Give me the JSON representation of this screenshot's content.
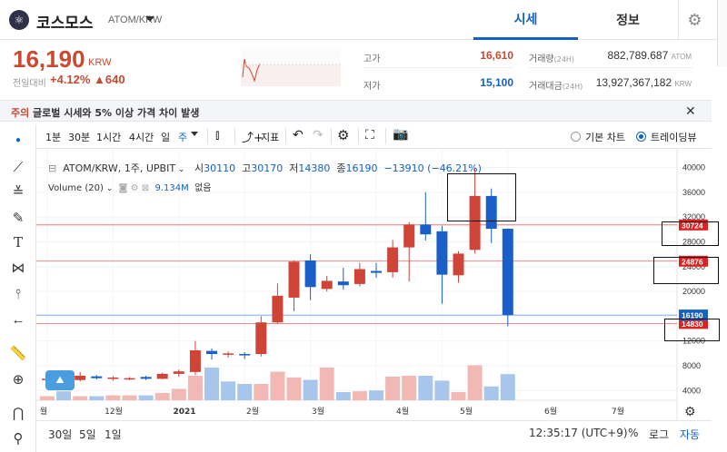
{
  "header": {
    "coin_name": "코스모스",
    "pair": "ATOM/KRW",
    "tabs": [
      "시세",
      "정보"
    ]
  },
  "price": {
    "current": "16,190",
    "unit": "KRW",
    "change_label": "전일대비",
    "change_pct": "+4.12%",
    "change_amt": "▲640",
    "high_label": "고가",
    "high": "16,610",
    "low_label": "저가",
    "low": "15,100",
    "vol_label": "거래량",
    "vol_period": "(24H)",
    "vol": "882,789.687",
    "vol_unit": "ATOM",
    "amt_label": "거래대금",
    "amt_period": "(24H)",
    "amt": "13,927,367,182",
    "amt_unit": "KRW"
  },
  "notice": {
    "tag": "주의",
    "text": "글로벌 시세와 5% 이상 가격 차이 발생"
  },
  "toolbar": {
    "intervals": [
      "1분",
      "30분",
      "1시간",
      "4시간",
      "일",
      "주"
    ],
    "indicator": "지표",
    "basic_chart": "기본 차트",
    "tradingview": "트레이딩뷰"
  },
  "legend": {
    "title": "ATOM/KRW, 1주, UPBIT",
    "open_label": "시",
    "open": "30110",
    "high_label": "고",
    "high": "30170",
    "low_label": "저",
    "low": "14380",
    "close_label": "종",
    "close": "16190",
    "change": "−13910 (−46.21%)",
    "volume_label": "Volume (20)",
    "volume_value": "9.134M",
    "volume_extra": "없음"
  },
  "chart_data": {
    "type": "candlestick",
    "y_ticks": [
      4000,
      8000,
      12000,
      16000,
      20000,
      24000,
      28000,
      32000,
      36000,
      40000
    ],
    "y_tick_labels": [
      "4000",
      "8000",
      "12000",
      "16000",
      "20000",
      "24000",
      "28000",
      "32000",
      "36000",
      "40000"
    ],
    "x_labels": [
      "월",
      "12월",
      "2021",
      "2월",
      "3월",
      "4월",
      "5월",
      "6월",
      "7월"
    ],
    "price_lines": [
      {
        "value": 30724,
        "label": "30724",
        "color": "#e02020"
      },
      {
        "value": 24876,
        "label": "24876",
        "color": "#e02020"
      },
      {
        "value": 14830,
        "label": "14830",
        "color": "#e02020"
      },
      {
        "value": 16190,
        "label": "16190",
        "color": "#1261c4"
      }
    ],
    "candles": [
      {
        "o": 5800,
        "h": 6100,
        "l": 5500,
        "c": 5900
      },
      {
        "o": 6000,
        "h": 6200,
        "l": 5600,
        "c": 5800
      },
      {
        "o": 5700,
        "h": 7000,
        "l": 5500,
        "c": 6400
      },
      {
        "o": 6300,
        "h": 6500,
        "l": 5800,
        "c": 6000
      },
      {
        "o": 5900,
        "h": 6300,
        "l": 5600,
        "c": 6100
      },
      {
        "o": 6000,
        "h": 6200,
        "l": 5700,
        "c": 6000
      },
      {
        "o": 6200,
        "h": 6400,
        "l": 5700,
        "c": 5900
      },
      {
        "o": 5900,
        "h": 6900,
        "l": 5800,
        "c": 6700
      },
      {
        "o": 6700,
        "h": 7400,
        "l": 6200,
        "c": 7100
      },
      {
        "o": 7000,
        "h": 12000,
        "l": 6500,
        "c": 10500
      },
      {
        "o": 10400,
        "h": 10800,
        "l": 9000,
        "c": 9900
      },
      {
        "o": 9900,
        "h": 10300,
        "l": 9300,
        "c": 10000
      },
      {
        "o": 9900,
        "h": 10200,
        "l": 9100,
        "c": 9700
      },
      {
        "o": 9900,
        "h": 16000,
        "l": 9500,
        "c": 15000
      },
      {
        "o": 15000,
        "h": 21300,
        "l": 14800,
        "c": 19300
      },
      {
        "o": 19000,
        "h": 25000,
        "l": 16800,
        "c": 24800
      },
      {
        "o": 25000,
        "h": 26000,
        "l": 18600,
        "c": 20700
      },
      {
        "o": 20400,
        "h": 22500,
        "l": 20000,
        "c": 21700
      },
      {
        "o": 21600,
        "h": 23800,
        "l": 20300,
        "c": 21000
      },
      {
        "o": 21200,
        "h": 24600,
        "l": 20800,
        "c": 23600
      },
      {
        "o": 23300,
        "h": 24600,
        "l": 22200,
        "c": 23000
      },
      {
        "o": 23100,
        "h": 28300,
        "l": 22200,
        "c": 27100
      },
      {
        "o": 27100,
        "h": 31200,
        "l": 21600,
        "c": 30800
      },
      {
        "o": 30800,
        "h": 36000,
        "l": 28200,
        "c": 29200
      },
      {
        "o": 29700,
        "h": 30600,
        "l": 18000,
        "c": 22700
      },
      {
        "o": 22600,
        "h": 26500,
        "l": 21400,
        "c": 26100
      },
      {
        "o": 26700,
        "h": 40000,
        "l": 26100,
        "c": 35400
      },
      {
        "o": 35400,
        "h": 36600,
        "l": 27800,
        "c": 30100
      },
      {
        "o": 30110,
        "h": 30170,
        "l": 14380,
        "c": 16190
      }
    ],
    "volume_max_label": "",
    "volumes": [
      0.5,
      1.1,
      0.5,
      0.5,
      0.6,
      0.6,
      0.6,
      0.9,
      1.4,
      3.0,
      4.0,
      2.3,
      2.0,
      2.0,
      3.5,
      2.8,
      2.5,
      4.0,
      1.0,
      1.1,
      1.2,
      2.9,
      3.0,
      3.0,
      2.4,
      1.0,
      4.3,
      1.7,
      3.2
    ],
    "volume_colors": [
      "up",
      "down",
      "up",
      "down",
      "up",
      "up",
      "down",
      "up",
      "up",
      "up",
      "down",
      "down",
      "down",
      "up",
      "up",
      "up",
      "down",
      "up",
      "down",
      "up",
      "down",
      "up",
      "up",
      "down",
      "down",
      "up",
      "up",
      "down",
      "down"
    ]
  },
  "bottom": {
    "ranges": [
      "30일",
      "5일",
      "1일"
    ],
    "time": "12:35:17 (UTC+9)",
    "pct": "%",
    "log": "로그",
    "auto": "자동"
  }
}
